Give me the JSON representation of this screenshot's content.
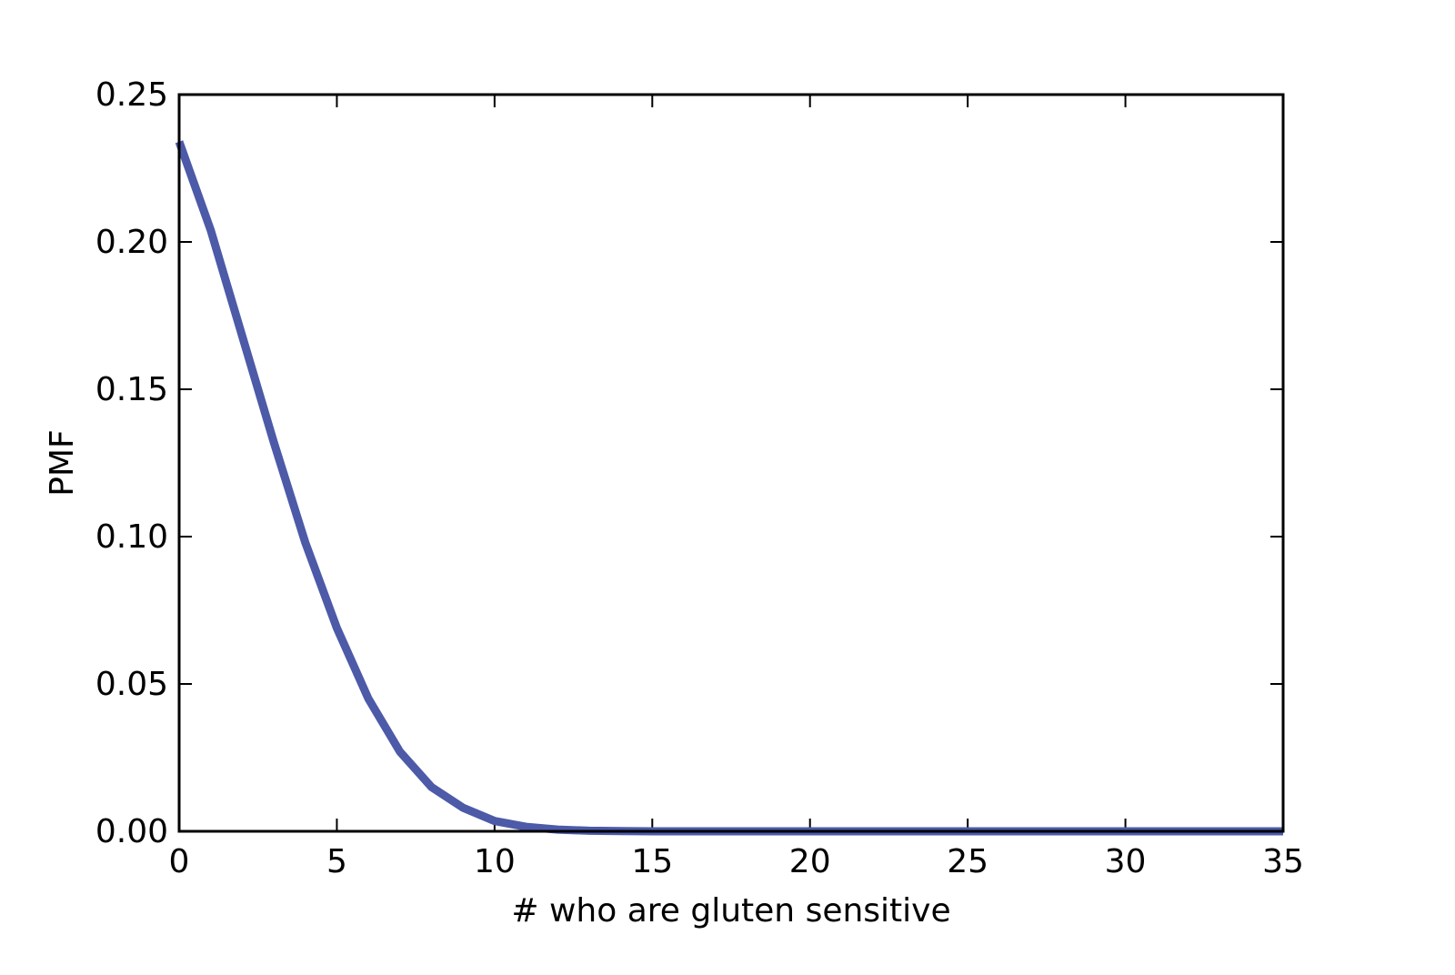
{
  "chart_data": {
    "type": "line",
    "title": "",
    "xlabel": "# who are gluten sensitive",
    "ylabel": "PMF",
    "xlim": [
      0,
      35
    ],
    "ylim": [
      0,
      0.25
    ],
    "xticks": [
      0,
      5,
      10,
      15,
      20,
      25,
      30,
      35
    ],
    "xtick_labels": [
      "0",
      "5",
      "10",
      "15",
      "20",
      "25",
      "30",
      "35"
    ],
    "yticks": [
      0,
      0.05,
      0.1,
      0.15,
      0.2,
      0.25
    ],
    "ytick_labels": [
      "0.00",
      "0.05",
      "0.10",
      "0.15",
      "0.20",
      "0.25"
    ],
    "grid": false,
    "legend": "none",
    "series": [
      {
        "color": "#4c5aa8",
        "x": [
          0,
          1,
          2,
          3,
          4,
          5,
          6,
          7,
          8,
          9,
          10,
          11,
          12,
          13,
          14,
          15,
          16,
          17,
          18,
          19,
          20,
          21,
          22,
          23,
          24,
          25,
          26,
          27,
          28,
          29,
          30,
          31,
          32,
          33,
          34,
          35
        ],
        "y": [
          0.234,
          0.204,
          0.168,
          0.132,
          0.098,
          0.069,
          0.045,
          0.027,
          0.015,
          0.008,
          0.0035,
          0.0015,
          0.0006,
          0.0002,
          0.0001,
          0.0,
          0.0,
          0.0,
          0.0,
          0.0,
          0.0,
          0.0,
          0.0,
          0.0,
          0.0,
          0.0,
          0.0,
          0.0,
          0.0,
          0.0,
          0.0,
          0.0,
          0.0,
          0.0,
          0.0,
          0.0
        ]
      }
    ]
  }
}
